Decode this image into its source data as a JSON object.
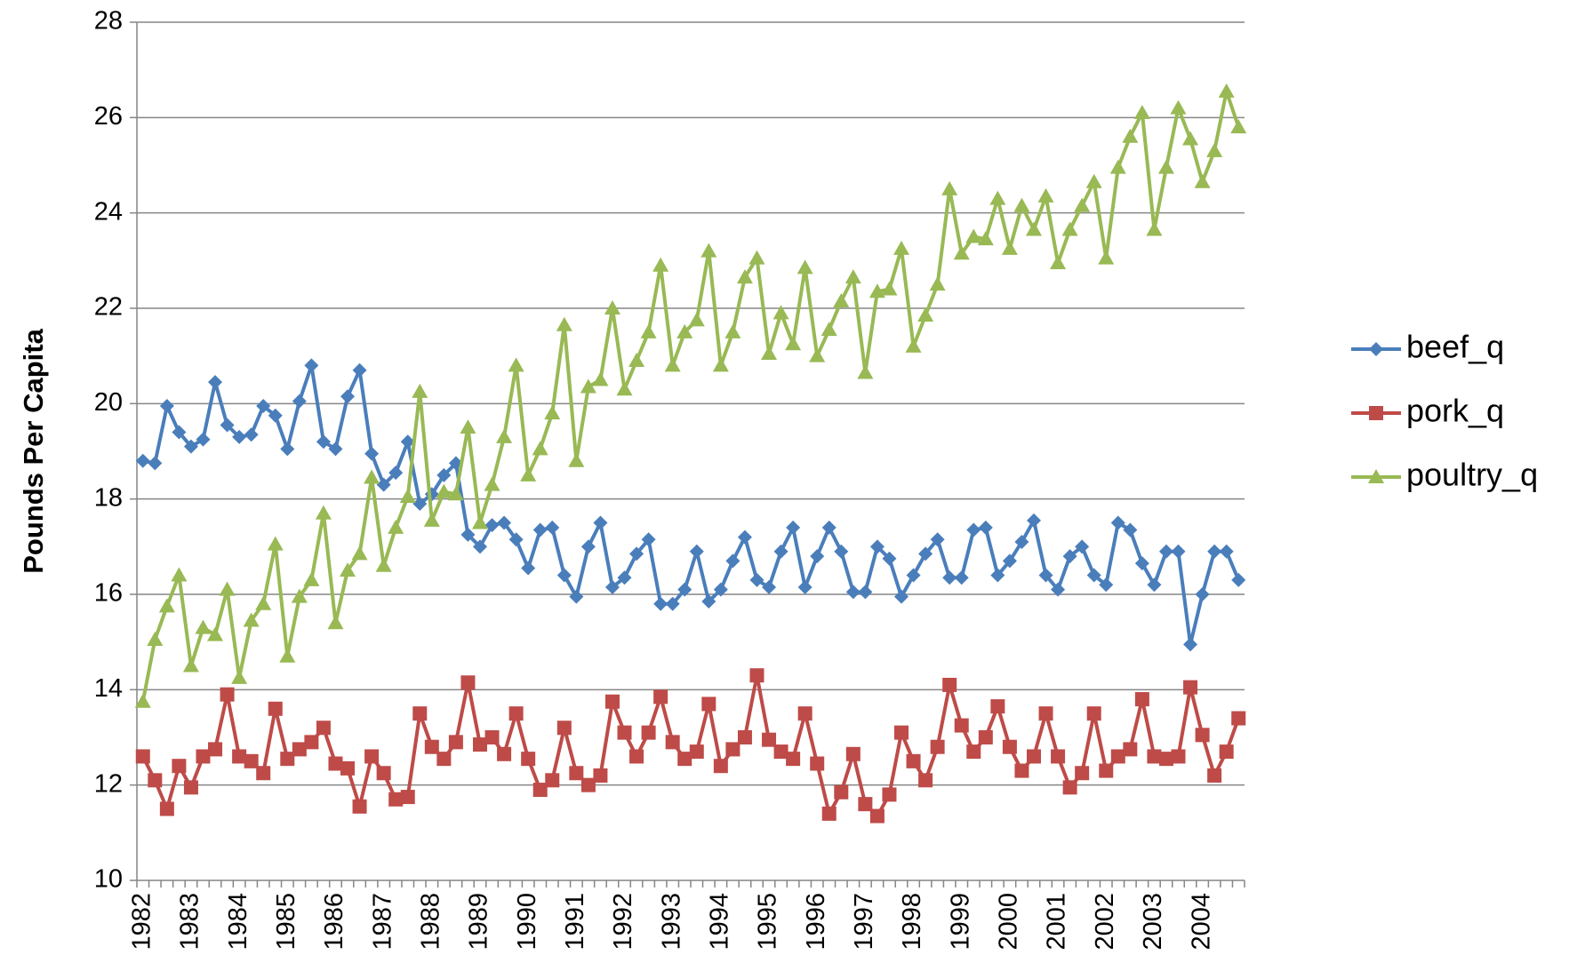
{
  "chart_data": {
    "type": "line",
    "y_label": "Pounds Per Capita",
    "categories": [
      "1982",
      null,
      null,
      null,
      "1983",
      null,
      null,
      null,
      "1984",
      null,
      null,
      null,
      "1985",
      null,
      null,
      null,
      "1986",
      null,
      null,
      null,
      "1987",
      null,
      null,
      null,
      "1988",
      null,
      null,
      null,
      "1989",
      null,
      null,
      null,
      "1990",
      null,
      null,
      null,
      "1991",
      null,
      null,
      null,
      "1992",
      null,
      null,
      null,
      "1993",
      null,
      null,
      null,
      "1994",
      null,
      null,
      null,
      "1995",
      null,
      null,
      null,
      "1996",
      null,
      null,
      null,
      "1997",
      null,
      null,
      null,
      "1998",
      null,
      null,
      null,
      "1999",
      null,
      null,
      null,
      "2000",
      null,
      null,
      null,
      "2001",
      null,
      null,
      null,
      "2002",
      null,
      null,
      null,
      "2003",
      null,
      null,
      null,
      "2004",
      null,
      null,
      null
    ],
    "series": [
      {
        "name": "beef_q",
        "color": "#4a7ebb",
        "marker": "diamond",
        "values": [
          18.8,
          18.75,
          19.95,
          19.4,
          19.1,
          19.25,
          20.45,
          19.55,
          19.3,
          19.35,
          19.95,
          19.75,
          19.05,
          20.05,
          20.8,
          19.2,
          19.05,
          20.15,
          20.7,
          18.95,
          18.3,
          18.55,
          19.2,
          17.9,
          18.1,
          18.5,
          18.75,
          17.25,
          17.0,
          17.45,
          17.5,
          17.15,
          16.55,
          17.35,
          17.4,
          16.4,
          15.95,
          17.0,
          17.5,
          16.15,
          16.35,
          16.85,
          17.15,
          15.8,
          15.8,
          16.1,
          16.9,
          15.85,
          16.1,
          16.7,
          17.2,
          16.3,
          16.15,
          16.9,
          17.4,
          16.15,
          16.8,
          17.4,
          16.9,
          16.05,
          16.05,
          17.0,
          16.75,
          15.95,
          16.4,
          16.85,
          17.15,
          16.35,
          16.35,
          17.35,
          17.4,
          16.4,
          16.7,
          17.1,
          17.55,
          16.4,
          16.1,
          16.8,
          17.0,
          16.4,
          16.2,
          17.5,
          17.35,
          16.65,
          16.2,
          16.9,
          16.9,
          14.95,
          16.0,
          16.9,
          16.9,
          16.3
        ]
      },
      {
        "name": "pork_q",
        "color": "#be4b48",
        "marker": "square",
        "values": [
          12.6,
          12.1,
          11.5,
          12.4,
          11.95,
          12.6,
          12.75,
          13.9,
          12.6,
          12.5,
          12.25,
          13.6,
          12.55,
          12.75,
          12.9,
          13.2,
          12.45,
          12.35,
          11.55,
          12.6,
          12.25,
          11.7,
          11.75,
          13.5,
          12.8,
          12.55,
          12.9,
          14.15,
          12.85,
          13.0,
          12.65,
          13.5,
          12.55,
          11.9,
          12.1,
          13.2,
          12.25,
          12.0,
          12.2,
          13.75,
          13.1,
          12.6,
          13.1,
          13.85,
          12.9,
          12.55,
          12.7,
          13.7,
          12.4,
          12.75,
          13.0,
          14.3,
          12.95,
          12.7,
          12.55,
          13.5,
          12.45,
          11.4,
          11.85,
          12.65,
          11.6,
          11.35,
          11.8,
          13.1,
          12.5,
          12.1,
          12.8,
          14.1,
          13.25,
          12.7,
          13.0,
          13.65,
          12.8,
          12.3,
          12.6,
          13.5,
          12.6,
          11.95,
          12.25,
          13.5,
          12.3,
          12.6,
          12.75,
          13.8,
          12.6,
          12.55,
          12.6,
          14.05,
          13.05,
          12.2,
          12.7,
          13.4
        ]
      },
      {
        "name": "poultry_q",
        "color": "#98b954",
        "marker": "triangle",
        "values": [
          13.75,
          15.05,
          15.75,
          16.4,
          14.5,
          15.3,
          15.15,
          16.1,
          14.25,
          15.45,
          15.8,
          17.05,
          14.7,
          15.95,
          16.3,
          17.7,
          15.4,
          16.5,
          16.85,
          18.45,
          16.6,
          17.4,
          18.05,
          20.25,
          17.55,
          18.15,
          18.1,
          19.5,
          17.5,
          18.3,
          19.3,
          20.8,
          18.5,
          19.05,
          19.8,
          21.65,
          18.8,
          20.35,
          20.5,
          22.0,
          20.3,
          20.9,
          21.5,
          22.9,
          20.8,
          21.5,
          21.75,
          23.2,
          20.8,
          21.5,
          22.65,
          23.05,
          21.05,
          21.9,
          21.25,
          22.85,
          21.0,
          21.55,
          22.15,
          22.65,
          20.65,
          22.35,
          22.4,
          23.25,
          21.2,
          21.85,
          22.5,
          24.5,
          23.15,
          23.5,
          23.45,
          24.3,
          23.25,
          24.15,
          23.65,
          24.35,
          22.95,
          23.65,
          24.15,
          24.65,
          23.05,
          24.95,
          25.6,
          26.1,
          23.65,
          24.95,
          26.2,
          25.55,
          24.65,
          25.3,
          26.55,
          25.8
        ]
      }
    ],
    "ylim": [
      10,
      28
    ],
    "yticks": [
      10,
      12,
      14,
      16,
      18,
      20,
      22,
      24,
      26,
      28
    ],
    "grid": true,
    "legend": "right"
  }
}
